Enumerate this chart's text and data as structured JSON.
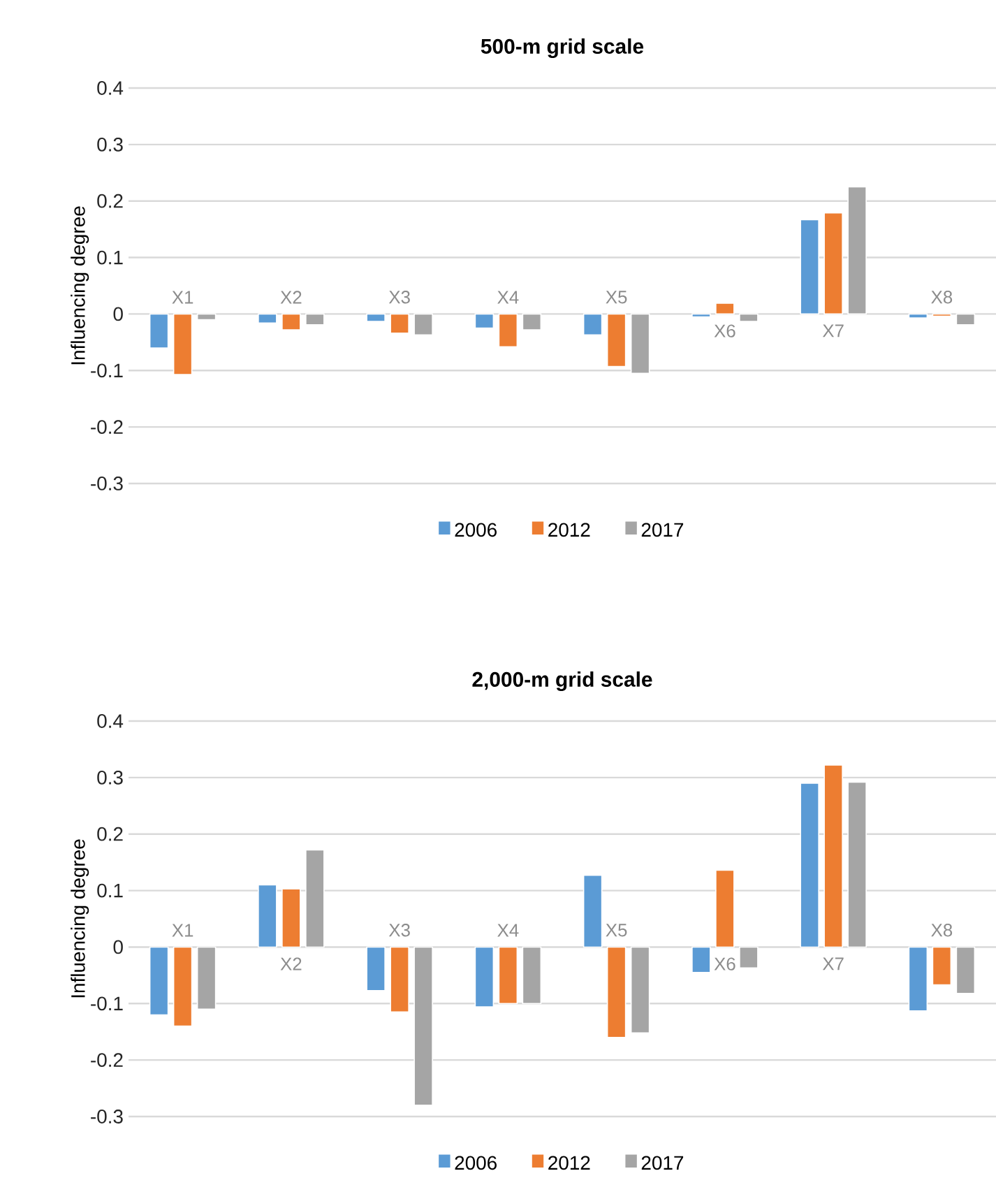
{
  "chart_data": [
    {
      "type": "bar",
      "title": "500-m grid scale",
      "ylabel": "Influencing degree",
      "categories": [
        "X1",
        "X2",
        "X3",
        "X4",
        "X5",
        "X6",
        "X7",
        "X8"
      ],
      "series": [
        {
          "name": "2006",
          "color": "#5b9bd5",
          "values": [
            -0.06,
            -0.016,
            -0.013,
            -0.025,
            -0.037,
            -0.005,
            0.167,
            -0.007
          ]
        },
        {
          "name": "2012",
          "color": "#ed7d31",
          "values": [
            -0.107,
            -0.028,
            -0.034,
            -0.058,
            -0.093,
            0.019,
            0.179,
            -0.004
          ]
        },
        {
          "name": "2017",
          "color": "#a5a5a5",
          "values": [
            -0.01,
            -0.019,
            -0.037,
            -0.028,
            -0.105,
            -0.013,
            0.225,
            -0.019
          ]
        }
      ],
      "ylim": [
        -0.3,
        0.4
      ],
      "yticks": [
        -0.3,
        -0.2,
        -0.1,
        0,
        0.1,
        0.2,
        0.3,
        0.4
      ],
      "grid": "y",
      "legend": "bottom"
    },
    {
      "type": "bar",
      "title": "2,000-m grid scale",
      "ylabel": "Influencing degree",
      "categories": [
        "X1",
        "X2",
        "X3",
        "X4",
        "X5",
        "X6",
        "X7",
        "X8"
      ],
      "series": [
        {
          "name": "2006",
          "color": "#5b9bd5",
          "values": [
            -0.12,
            0.11,
            -0.077,
            -0.106,
            0.127,
            -0.045,
            0.29,
            -0.113
          ]
        },
        {
          "name": "2012",
          "color": "#ed7d31",
          "values": [
            -0.14,
            0.103,
            -0.115,
            -0.1,
            -0.16,
            0.136,
            0.322,
            -0.067
          ]
        },
        {
          "name": "2017",
          "color": "#a5a5a5",
          "values": [
            -0.11,
            0.172,
            -0.28,
            -0.1,
            -0.152,
            -0.037,
            0.292,
            -0.082
          ]
        }
      ],
      "ylim": [
        -0.3,
        0.4
      ],
      "yticks": [
        -0.3,
        -0.2,
        -0.1,
        0,
        0.1,
        0.2,
        0.3,
        0.4
      ],
      "grid": "y",
      "legend": "bottom"
    }
  ]
}
